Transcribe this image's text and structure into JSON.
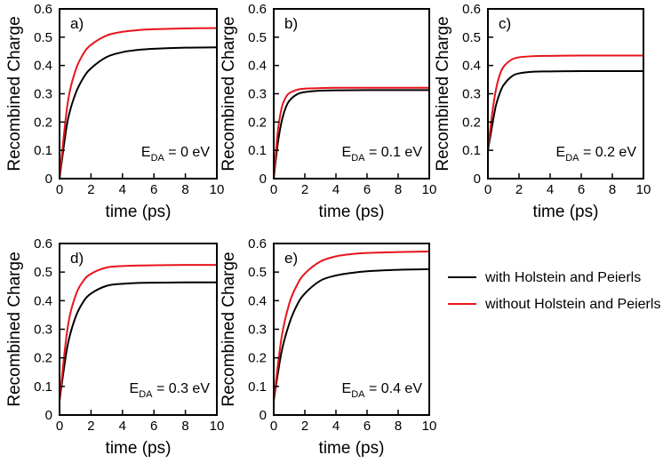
{
  "legend": [
    {
      "label": "with Holstein and Peierls",
      "color": "#000000"
    },
    {
      "label": "without Holstein and Peierls",
      "color": "#e8141c"
    }
  ],
  "chart_data": [
    {
      "type": "line",
      "panel": "a)",
      "annotation": {
        "main": "E",
        "sub": "DA",
        "rest": " = 0 eV"
      },
      "xlabel": "time (ps)",
      "ylabel": "Recombined Charge",
      "xlim": [
        0,
        10
      ],
      "ylim": [
        0,
        0.6
      ],
      "xticks": [
        0,
        2,
        4,
        6,
        8,
        10
      ],
      "yticks": [
        0,
        0.1,
        0.2,
        0.3,
        0.4,
        0.5,
        0.6
      ],
      "x": [
        0,
        0.5,
        1,
        1.5,
        2,
        3,
        4,
        5,
        6,
        8,
        10
      ],
      "series": [
        {
          "name": "with Holstein and Peierls",
          "color": "#000000",
          "values": [
            0,
            0.2,
            0.298,
            0.355,
            0.39,
            0.43,
            0.447,
            0.455,
            0.459,
            0.463,
            0.464
          ]
        },
        {
          "name": "without Holstein and Peierls",
          "color": "#e8141c",
          "values": [
            0,
            0.26,
            0.38,
            0.44,
            0.473,
            0.506,
            0.519,
            0.525,
            0.528,
            0.531,
            0.532
          ]
        }
      ]
    },
    {
      "type": "line",
      "panel": "b)",
      "annotation": {
        "main": "E",
        "sub": "DA",
        "rest": " = 0.1 eV"
      },
      "xlabel": "time (ps)",
      "ylabel": "Recombined Charge",
      "xlim": [
        0,
        10
      ],
      "ylim": [
        0,
        0.6
      ],
      "xticks": [
        0,
        2,
        4,
        6,
        8,
        10
      ],
      "yticks": [
        0,
        0.1,
        0.2,
        0.3,
        0.4,
        0.5,
        0.6
      ],
      "x": [
        0,
        0.25,
        0.5,
        0.75,
        1,
        1.5,
        2,
        3,
        4,
        6,
        8,
        10
      ],
      "series": [
        {
          "name": "with Holstein and Peierls",
          "color": "#000000",
          "values": [
            0,
            0.12,
            0.2,
            0.248,
            0.275,
            0.298,
            0.306,
            0.311,
            0.312,
            0.313,
            0.313,
            0.313
          ]
        },
        {
          "name": "without Holstein and Peierls",
          "color": "#e8141c",
          "values": [
            0,
            0.16,
            0.248,
            0.285,
            0.302,
            0.314,
            0.318,
            0.32,
            0.321,
            0.321,
            0.321,
            0.321
          ]
        }
      ]
    },
    {
      "type": "line",
      "panel": "c)",
      "annotation": {
        "main": "E",
        "sub": "DA",
        "rest": " = 0.2 eV"
      },
      "xlabel": "time (ps)",
      "ylabel": "Recombined Charge",
      "xlim": [
        0,
        10
      ],
      "ylim": [
        0,
        0.6
      ],
      "xticks": [
        0,
        2,
        4,
        6,
        8,
        10
      ],
      "yticks": [
        0,
        0.1,
        0.2,
        0.3,
        0.4,
        0.5,
        0.6
      ],
      "x": [
        0,
        0.25,
        0.5,
        0.75,
        1,
        1.5,
        2,
        3,
        4,
        6,
        8,
        10
      ],
      "series": [
        {
          "name": "with Holstein and Peierls",
          "color": "#000000",
          "values": [
            0.1,
            0.18,
            0.255,
            0.3,
            0.33,
            0.36,
            0.372,
            0.378,
            0.379,
            0.38,
            0.38,
            0.38
          ]
        },
        {
          "name": "without Holstein and Peierls",
          "color": "#e8141c",
          "values": [
            0.1,
            0.22,
            0.31,
            0.365,
            0.395,
            0.42,
            0.429,
            0.433,
            0.434,
            0.435,
            0.435,
            0.435
          ]
        }
      ]
    },
    {
      "type": "line",
      "panel": "d)",
      "annotation": {
        "main": "E",
        "sub": "DA",
        "rest": " = 0.3 eV"
      },
      "xlabel": "time (ps)",
      "ylabel": "Recombined Charge",
      "xlim": [
        0,
        10
      ],
      "ylim": [
        0,
        0.6
      ],
      "xticks": [
        0,
        2,
        4,
        6,
        8,
        10
      ],
      "yticks": [
        0,
        0.1,
        0.2,
        0.3,
        0.4,
        0.5,
        0.6
      ],
      "x": [
        0,
        0.5,
        1,
        1.5,
        2,
        3,
        4,
        5,
        6,
        8,
        10
      ],
      "series": [
        {
          "name": "with Holstein and Peierls",
          "color": "#000000",
          "values": [
            0.05,
            0.24,
            0.34,
            0.395,
            0.425,
            0.452,
            0.459,
            0.462,
            0.463,
            0.464,
            0.464
          ]
        },
        {
          "name": "without Holstein and Peierls",
          "color": "#e8141c",
          "values": [
            0.05,
            0.3,
            0.415,
            0.468,
            0.494,
            0.516,
            0.521,
            0.523,
            0.524,
            0.525,
            0.525
          ]
        }
      ]
    },
    {
      "type": "line",
      "panel": "e)",
      "annotation": {
        "main": "E",
        "sub": "DA",
        "rest": " = 0.4 eV"
      },
      "xlabel": "time (ps)",
      "ylabel": "Recombined Charge",
      "xlim": [
        0,
        10
      ],
      "ylim": [
        0,
        0.6
      ],
      "xticks": [
        0,
        2,
        4,
        6,
        8,
        10
      ],
      "yticks": [
        0,
        0.1,
        0.2,
        0.3,
        0.4,
        0.5,
        0.6
      ],
      "x": [
        0,
        0.5,
        1,
        1.5,
        2,
        3,
        4,
        5,
        6,
        8,
        10
      ],
      "series": [
        {
          "name": "with Holstein and Peierls",
          "color": "#000000",
          "values": [
            0.05,
            0.22,
            0.32,
            0.385,
            0.425,
            0.47,
            0.488,
            0.497,
            0.503,
            0.508,
            0.51
          ]
        },
        {
          "name": "without Holstein and Peierls",
          "color": "#e8141c",
          "values": [
            0.05,
            0.27,
            0.39,
            0.455,
            0.495,
            0.537,
            0.555,
            0.563,
            0.567,
            0.57,
            0.572
          ]
        }
      ]
    }
  ]
}
